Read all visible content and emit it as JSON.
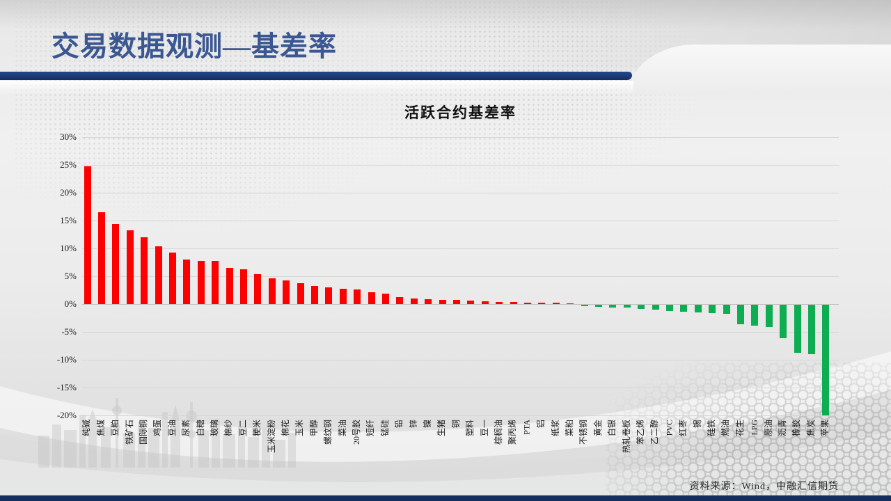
{
  "slide": {
    "title": "交易数据观测—基差率",
    "footer_source": "资料来源：Wind，中融汇信期货"
  },
  "chart_data": {
    "type": "bar",
    "title": "活跃合约基差率",
    "xlabel": "",
    "ylabel": "",
    "ylim": [
      -20,
      30
    ],
    "ytick_step": 5,
    "ytick_labels": [
      "30%",
      "25%",
      "20%",
      "15%",
      "10%",
      "5%",
      "0%",
      "-5%",
      "-10%",
      "-15%",
      "-20%"
    ],
    "grid": true,
    "legend": "none",
    "positive_color": "#fe0000",
    "negative_color": "#0ead52",
    "categories": [
      "纯碱",
      "焦煤",
      "豆粕",
      "铁矿石",
      "国际铜",
      "鸡蛋",
      "豆油",
      "尿素",
      "白糖",
      "玻璃",
      "棉纱",
      "豆二",
      "粳米",
      "玉米淀粉",
      "棉花",
      "玉米",
      "甲醇",
      "螺纹钢",
      "菜油",
      "20号胶",
      "短纤",
      "锰硅",
      "铅",
      "锌",
      "镍",
      "生猪",
      "铜",
      "塑料",
      "豆一",
      "棕榈油",
      "聚丙烯",
      "PTA",
      "铝",
      "纸浆",
      "菜粕",
      "不锈钢",
      "黄金",
      "白银",
      "热轧卷板",
      "苯乙烯",
      "乙二醇",
      "PVC",
      "红枣",
      "锡",
      "硅铁",
      "燃油",
      "花生",
      "LPG",
      "原油",
      "沥青",
      "橡胶",
      "焦炭",
      "苹果"
    ],
    "values": [
      24.8,
      16.5,
      14.4,
      13.3,
      12.0,
      10.4,
      9.3,
      8.0,
      7.8,
      7.8,
      6.5,
      6.2,
      5.4,
      4.6,
      4.2,
      3.7,
      3.3,
      3.0,
      2.7,
      2.6,
      2.1,
      1.9,
      1.2,
      1.0,
      0.9,
      0.8,
      0.7,
      0.6,
      0.5,
      0.4,
      0.35,
      0.3,
      0.25,
      0.2,
      0.15,
      -0.2,
      -0.4,
      -0.45,
      -0.55,
      -0.75,
      -0.9,
      -1.15,
      -1.3,
      -1.4,
      -1.5,
      -1.6,
      -3.5,
      -3.7,
      -4.0,
      -6.0,
      -8.6,
      -8.9,
      -19.9
    ]
  }
}
